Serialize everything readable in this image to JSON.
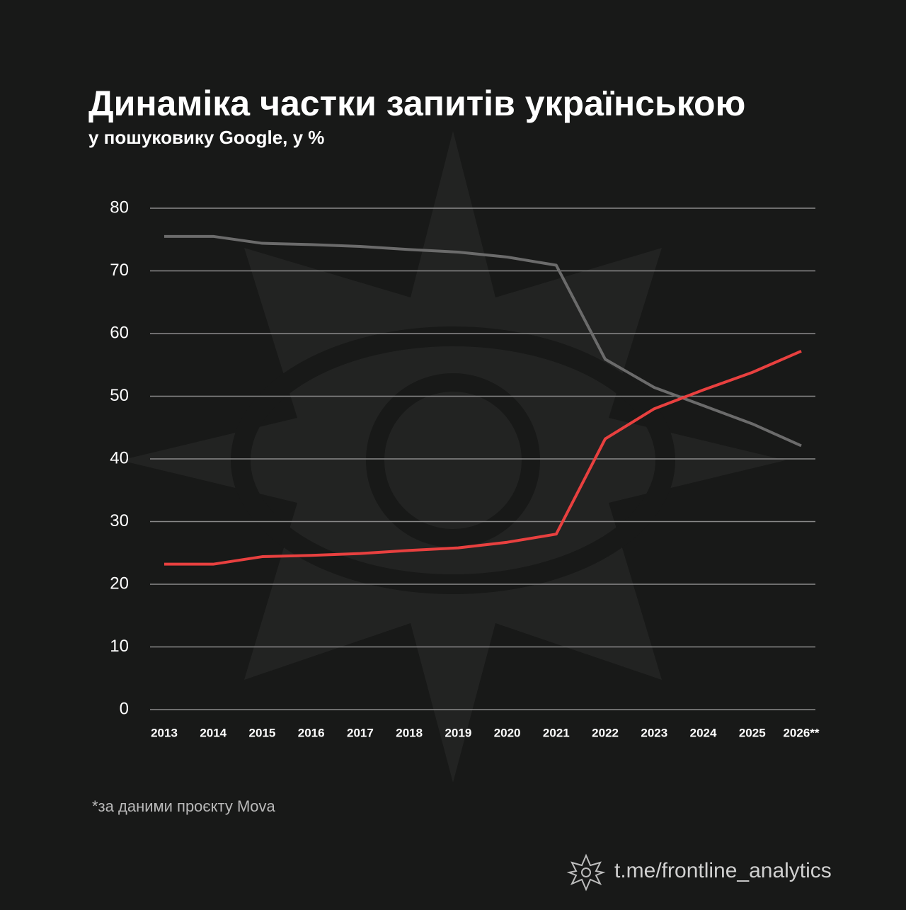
{
  "chart_data": {
    "type": "line",
    "title": "Динаміка частки запитів українською",
    "subtitle": "у пошуковику Google, у %",
    "categories": [
      "2013",
      "2014",
      "2015",
      "2016",
      "2017",
      "2018",
      "2019",
      "2020",
      "2021",
      "2022",
      "2023",
      "2024",
      "2025",
      "2026**"
    ],
    "series": [
      {
        "color": "#6b6b6b",
        "values": [
          75.5,
          75.5,
          74.4,
          74.2,
          73.9,
          73.4,
          73.0,
          72.2,
          70.9,
          55.9,
          51.4,
          48.5,
          45.6,
          42.1
        ]
      },
      {
        "color": "#e8403f",
        "values": [
          23.2,
          23.2,
          24.4,
          24.6,
          24.9,
          25.4,
          25.8,
          26.7,
          28.0,
          43.2,
          48.0,
          51.0,
          53.8,
          57.2
        ]
      }
    ],
    "ylim": [
      0,
      80
    ],
    "yticks": [
      0,
      10,
      20,
      30,
      40,
      50,
      60,
      70,
      80
    ],
    "grid": true,
    "note": "*за даними проєкту Mova",
    "source": "t.me/frontline_analytics"
  }
}
